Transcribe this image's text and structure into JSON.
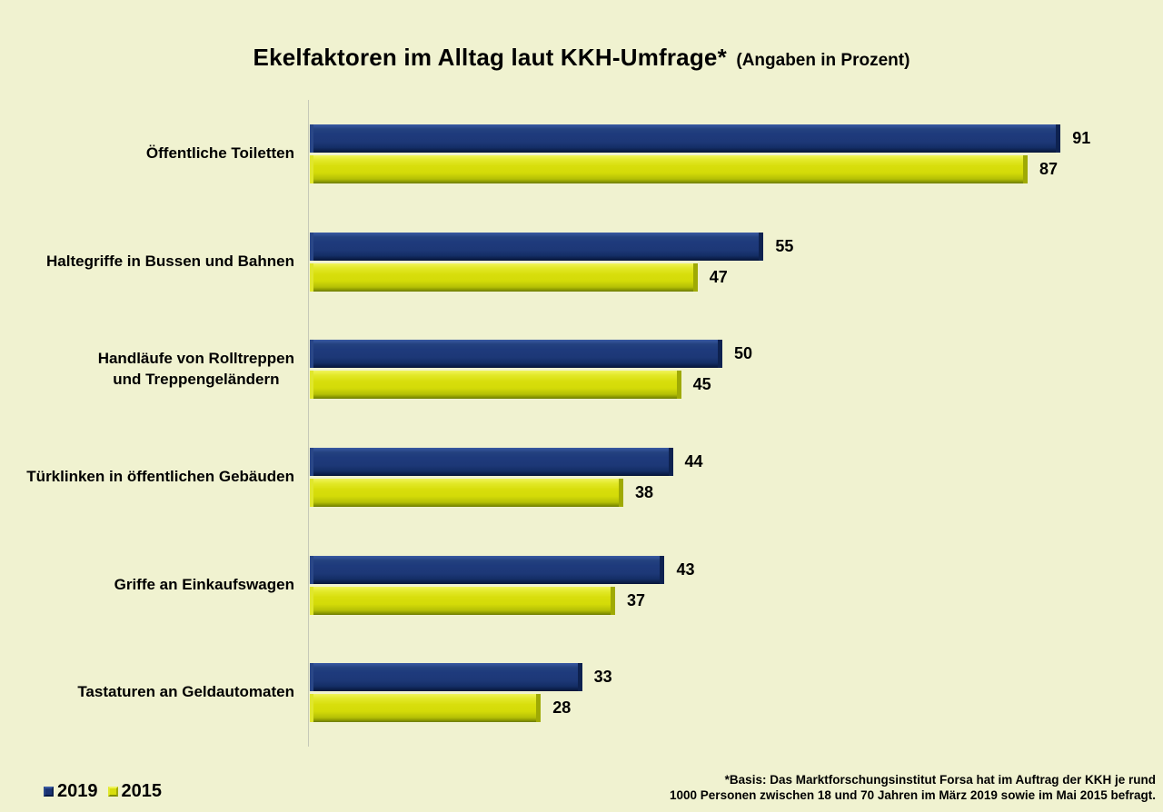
{
  "title": {
    "main": "Ekelfaktoren im Alltag laut KKH-Umfrage*",
    "sub": "(Angaben in Prozent)"
  },
  "chart_data": {
    "type": "bar",
    "orientation": "horizontal",
    "title": "Ekelfaktoren im Alltag laut KKH-Umfrage* (Angaben in Prozent)",
    "unit": "percent",
    "xlim": [
      0,
      100
    ],
    "grid": false,
    "value_labels": true,
    "legend_position": "bottom-left",
    "categories": [
      "Öffentliche Toiletten",
      "Haltegriffe in Bussen und Bahnen",
      "Handläufe von Rolltreppen\nund Treppengeländern",
      "Türklinken in öffentlichen Gebäuden",
      "Griffe an Einkaufswagen",
      "Tastaturen an Geldautomaten"
    ],
    "series": [
      {
        "name": "2019",
        "color": "#1e3a7c",
        "values": [
          91,
          55,
          50,
          44,
          43,
          33
        ]
      },
      {
        "name": "2015",
        "color": "#d8de0c",
        "values": [
          87,
          47,
          45,
          38,
          37,
          28
        ]
      }
    ]
  },
  "footnote": {
    "line1": "*Basis: Das Marktforschungsinstitut Forsa hat im Auftrag der KKH je rund",
    "line2": "1000 Personen zwischen 18 und 70 Jahren im März 2019 sowie im Mai 2015 befragt."
  },
  "colors": {
    "background": "#f0f2d0",
    "axis_line": "#c6c9b8",
    "text": "#000000",
    "series_2019": "#1e3a7c",
    "series_2015": "#d8de0c"
  }
}
